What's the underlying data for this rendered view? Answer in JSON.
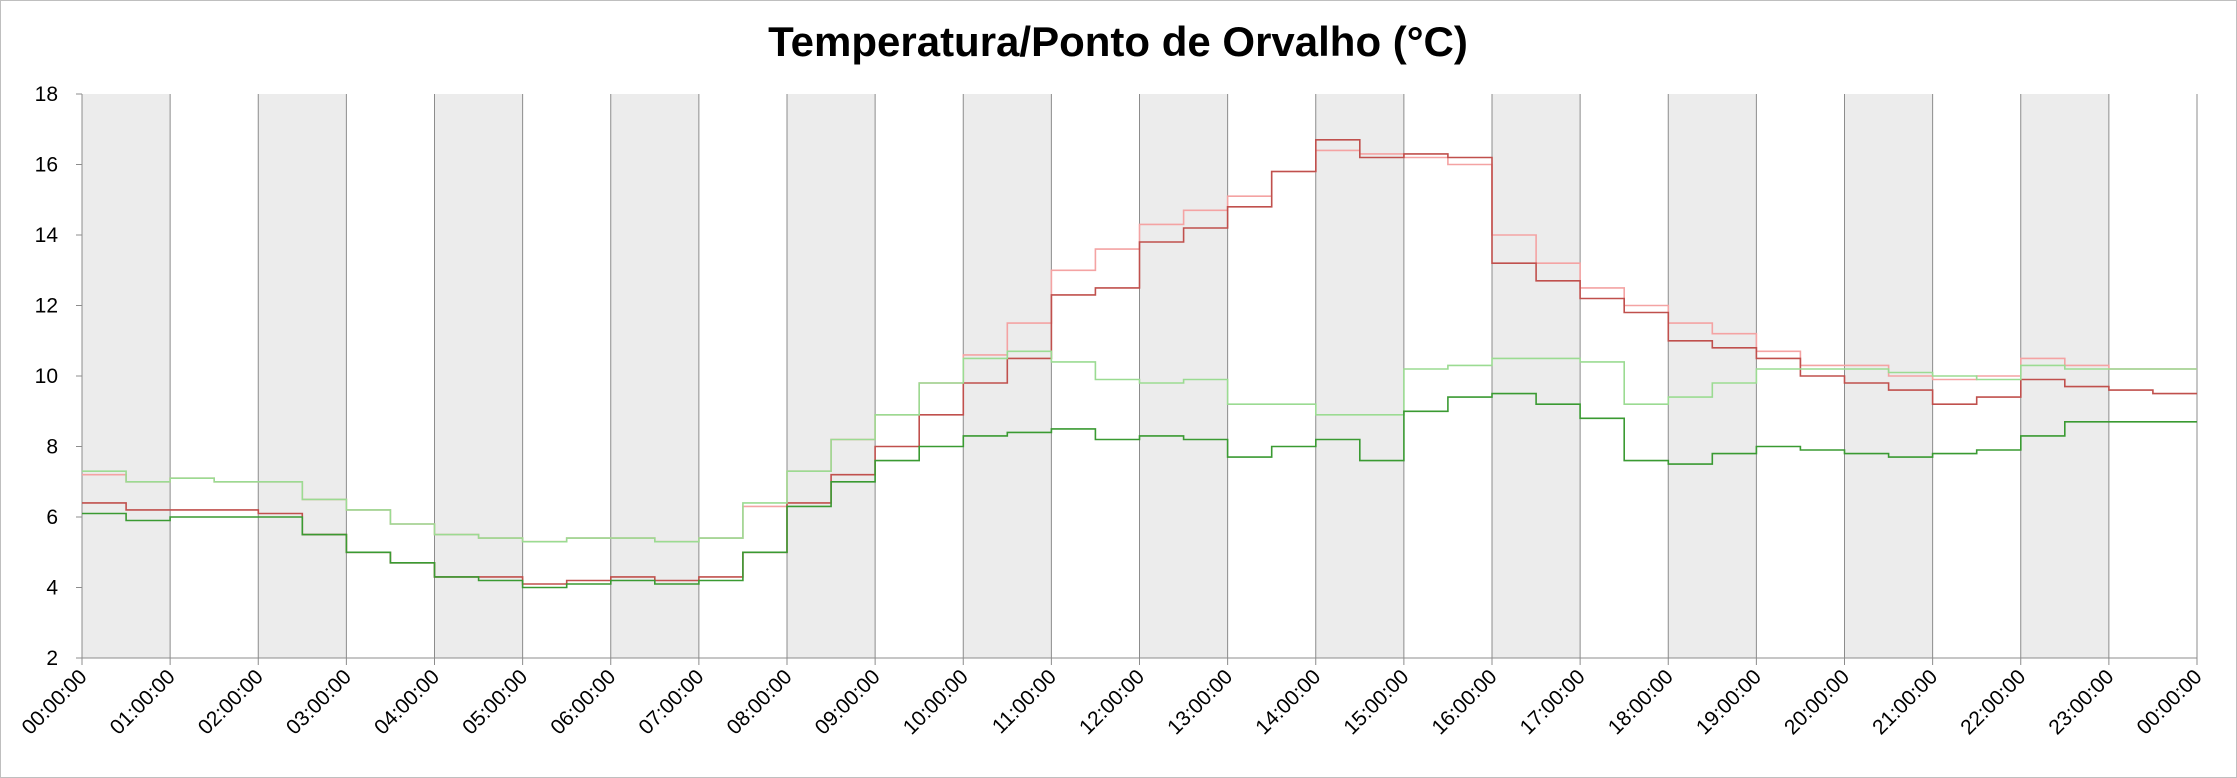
{
  "chart_data": {
    "type": "line",
    "title": "Temperatura/Ponto de Orvalho (°C)",
    "xlabel": "",
    "ylabel": "",
    "ylim": [
      2,
      18
    ],
    "yticks": [
      "2",
      "4",
      "6",
      "8",
      "10",
      "12",
      "14",
      "16",
      "18"
    ],
    "xticks": [
      "00:00:00",
      "01:00:00",
      "02:00:00",
      "03:00:00",
      "04:00:00",
      "05:00:00",
      "06:00:00",
      "07:00:00",
      "08:00:00",
      "09:00:00",
      "10:00:00",
      "11:00:00",
      "12:00:00",
      "13:00:00",
      "14:00:00",
      "15:00:00",
      "16:00:00",
      "17:00:00",
      "18:00:00",
      "19:00:00",
      "20:00:00",
      "21:00:00",
      "22:00:00",
      "23:00:00",
      "00:00:00"
    ],
    "hour_bands": "alternate hours shaded light gray",
    "grid": "vertical lines at each hour",
    "legend": "none",
    "x": [
      "00:00",
      "00:30",
      "01:00",
      "01:30",
      "02:00",
      "02:30",
      "03:00",
      "03:30",
      "04:00",
      "04:30",
      "05:00",
      "05:30",
      "06:00",
      "06:30",
      "07:00",
      "07:30",
      "08:00",
      "08:30",
      "09:00",
      "09:30",
      "10:00",
      "10:30",
      "11:00",
      "11:30",
      "12:00",
      "12:30",
      "13:00",
      "13:30",
      "14:00",
      "14:30",
      "15:00",
      "15:30",
      "16:00",
      "16:30",
      "17:00",
      "17:30",
      "18:00",
      "18:30",
      "19:00",
      "19:30",
      "20:00",
      "20:30",
      "21:00",
      "21:30",
      "22:00",
      "22:30",
      "23:00",
      "23:30",
      "24:00"
    ],
    "series": [
      {
        "color": "#f4a3a3",
        "values": [
          7.2,
          7.0,
          7.1,
          7.0,
          7.0,
          6.5,
          6.2,
          5.8,
          5.5,
          5.4,
          5.3,
          5.4,
          5.4,
          5.3,
          5.4,
          6.3,
          7.3,
          8.2,
          8.9,
          9.8,
          10.6,
          11.5,
          13.0,
          13.6,
          14.3,
          14.7,
          15.1,
          15.8,
          16.4,
          16.3,
          16.2,
          16.0,
          14.0,
          13.2,
          12.5,
          12.0,
          11.5,
          11.2,
          10.7,
          10.3,
          10.3,
          10.0,
          9.9,
          10.0,
          10.5,
          10.3,
          10.2,
          10.2,
          10.2
        ]
      },
      {
        "color": "#c0504d",
        "values": [
          6.4,
          6.2,
          6.2,
          6.2,
          6.1,
          5.5,
          5.0,
          4.7,
          4.3,
          4.3,
          4.1,
          4.2,
          4.3,
          4.2,
          4.3,
          5.0,
          6.4,
          7.2,
          8.0,
          8.9,
          9.8,
          10.5,
          12.3,
          12.5,
          13.8,
          14.2,
          14.8,
          15.8,
          16.7,
          16.2,
          16.3,
          16.2,
          13.2,
          12.7,
          12.2,
          11.8,
          11.0,
          10.8,
          10.5,
          10.0,
          9.8,
          9.6,
          9.2,
          9.4,
          9.9,
          9.7,
          9.6,
          9.5,
          9.5
        ]
      },
      {
        "color": "#9bdb92",
        "values": [
          7.3,
          7.0,
          7.1,
          7.0,
          7.0,
          6.5,
          6.2,
          5.8,
          5.5,
          5.4,
          5.3,
          5.4,
          5.4,
          5.3,
          5.4,
          6.4,
          7.3,
          8.2,
          8.9,
          9.8,
          10.5,
          10.7,
          10.4,
          9.9,
          9.8,
          9.9,
          9.2,
          9.2,
          8.9,
          8.9,
          10.2,
          10.3,
          10.5,
          10.5,
          10.4,
          9.2,
          9.4,
          9.8,
          10.2,
          10.2,
          10.2,
          10.1,
          10.0,
          9.9,
          10.3,
          10.2,
          10.2,
          10.2,
          10.2
        ]
      },
      {
        "color": "#3a9a32",
        "values": [
          6.1,
          5.9,
          6.0,
          6.0,
          6.0,
          5.5,
          5.0,
          4.7,
          4.3,
          4.2,
          4.0,
          4.1,
          4.2,
          4.1,
          4.2,
          5.0,
          6.3,
          7.0,
          7.6,
          8.0,
          8.3,
          8.4,
          8.5,
          8.2,
          8.3,
          8.2,
          7.7,
          8.0,
          8.2,
          7.6,
          9.0,
          9.4,
          9.5,
          9.2,
          8.8,
          7.6,
          7.5,
          7.8,
          8.0,
          7.9,
          7.8,
          7.7,
          7.8,
          7.9,
          8.3,
          8.7,
          8.7,
          8.7,
          8.7
        ]
      }
    ]
  }
}
